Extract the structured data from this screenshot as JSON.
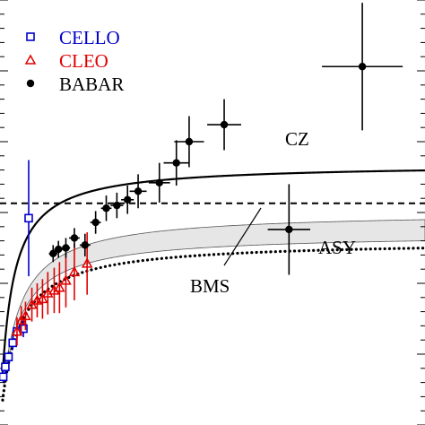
{
  "chart_data": {
    "type": "scatter",
    "title": "",
    "xlabel": "",
    "ylabel": "",
    "xlim": [
      0,
      40
    ],
    "ylim": [
      0,
      0.3
    ],
    "grid": false,
    "legend_position": "top-left",
    "legend": [
      {
        "label": "CELLO",
        "marker": "open-square",
        "color": "#0000cc"
      },
      {
        "label": "CLEO",
        "marker": "open-triangle",
        "color": "#e00000"
      },
      {
        "label": "BABAR",
        "marker": "filled-circle",
        "color": "#000000"
      }
    ],
    "series": [
      {
        "name": "CELLO",
        "marker": "open-square",
        "color": "#0000cc",
        "points": [
          {
            "x": 0.3,
            "y": 0.034,
            "xerr": 0.2,
            "yerr": 0.004
          },
          {
            "x": 0.5,
            "y": 0.041,
            "xerr": 0.2,
            "yerr": 0.004
          },
          {
            "x": 0.8,
            "y": 0.048,
            "xerr": 0.2,
            "yerr": 0.004
          },
          {
            "x": 1.2,
            "y": 0.058,
            "xerr": 0.2,
            "yerr": 0.005
          },
          {
            "x": 1.6,
            "y": 0.066,
            "xerr": 0.2,
            "yerr": 0.005
          },
          {
            "x": 2.2,
            "y": 0.068,
            "xerr": 0.2,
            "yerr": 0.006
          },
          {
            "x": 2.7,
            "y": 0.146,
            "xerr": 0.3,
            "yerr": 0.041
          }
        ]
      },
      {
        "name": "CLEO",
        "marker": "open-triangle",
        "color": "#e00000",
        "points": [
          {
            "x": 1.6,
            "y": 0.066,
            "yerr": 0.01
          },
          {
            "x": 2.0,
            "y": 0.074,
            "yerr": 0.01
          },
          {
            "x": 2.4,
            "y": 0.077,
            "yerr": 0.01
          },
          {
            "x": 3.0,
            "y": 0.085,
            "yerr": 0.012
          },
          {
            "x": 3.5,
            "y": 0.088,
            "yerr": 0.012
          },
          {
            "x": 4.0,
            "y": 0.089,
            "yerr": 0.014
          },
          {
            "x": 4.5,
            "y": 0.093,
            "yerr": 0.015
          },
          {
            "x": 5.1,
            "y": 0.095,
            "yerr": 0.016
          },
          {
            "x": 5.6,
            "y": 0.097,
            "yerr": 0.018
          },
          {
            "x": 6.2,
            "y": 0.102,
            "yerr": 0.019
          },
          {
            "x": 7.0,
            "y": 0.108,
            "yerr": 0.02
          },
          {
            "x": 8.2,
            "y": 0.114,
            "yerr": 0.022
          }
        ]
      },
      {
        "name": "BABAR",
        "marker": "filled-circle",
        "color": "#000000",
        "points": [
          {
            "x": 5.0,
            "y": 0.121,
            "xerr": 0.4,
            "yerr": 0.006
          },
          {
            "x": 5.5,
            "y": 0.124,
            "xerr": 0.4,
            "yerr": 0.006
          },
          {
            "x": 6.2,
            "y": 0.125,
            "xerr": 0.4,
            "yerr": 0.007
          },
          {
            "x": 7.0,
            "y": 0.132,
            "xerr": 0.5,
            "yerr": 0.007
          },
          {
            "x": 8.0,
            "y": 0.127,
            "xerr": 0.5,
            "yerr": 0.008
          },
          {
            "x": 9.0,
            "y": 0.143,
            "xerr": 0.5,
            "yerr": 0.008
          },
          {
            "x": 10.0,
            "y": 0.153,
            "xerr": 0.5,
            "yerr": 0.009
          },
          {
            "x": 11.0,
            "y": 0.155,
            "xerr": 0.6,
            "yerr": 0.009
          },
          {
            "x": 12.0,
            "y": 0.159,
            "xerr": 0.6,
            "yerr": 0.01
          },
          {
            "x": 13.0,
            "y": 0.165,
            "xerr": 0.8,
            "yerr": 0.012
          },
          {
            "x": 15.0,
            "y": 0.171,
            "xerr": 1.0,
            "yerr": 0.014
          },
          {
            "x": 16.6,
            "y": 0.185,
            "xerr": 1.2,
            "yerr": 0.016
          },
          {
            "x": 17.8,
            "y": 0.2,
            "xerr": 1.4,
            "yerr": 0.018
          },
          {
            "x": 21.1,
            "y": 0.212,
            "xerr": 1.6,
            "yerr": 0.018
          },
          {
            "x": 27.2,
            "y": 0.138,
            "xerr": 2.0,
            "yerr": 0.032
          },
          {
            "x": 34.1,
            "y": 0.253,
            "xerr": 3.8,
            "yerr": 0.045
          }
        ]
      }
    ],
    "curves": [
      {
        "name": "CZ",
        "style": "solid",
        "asymptote": 0.1842,
        "scale": 1.0
      },
      {
        "name": "ASY",
        "style": "dotted",
        "asymptote": 0.1299,
        "scale": 1.6
      },
      {
        "name": "BMS",
        "style": "band",
        "lower_asymptote": 0.1349,
        "upper_asymptote": 0.1504,
        "scale": 1.5
      }
    ],
    "reference_line": {
      "style": "dashed",
      "y": 0.1565
    },
    "annotations": [
      {
        "text": "CZ",
        "target": "CZ"
      },
      {
        "text": "ASY",
        "target": "ASY"
      },
      {
        "text": "BMS",
        "target": "BMS"
      }
    ]
  }
}
